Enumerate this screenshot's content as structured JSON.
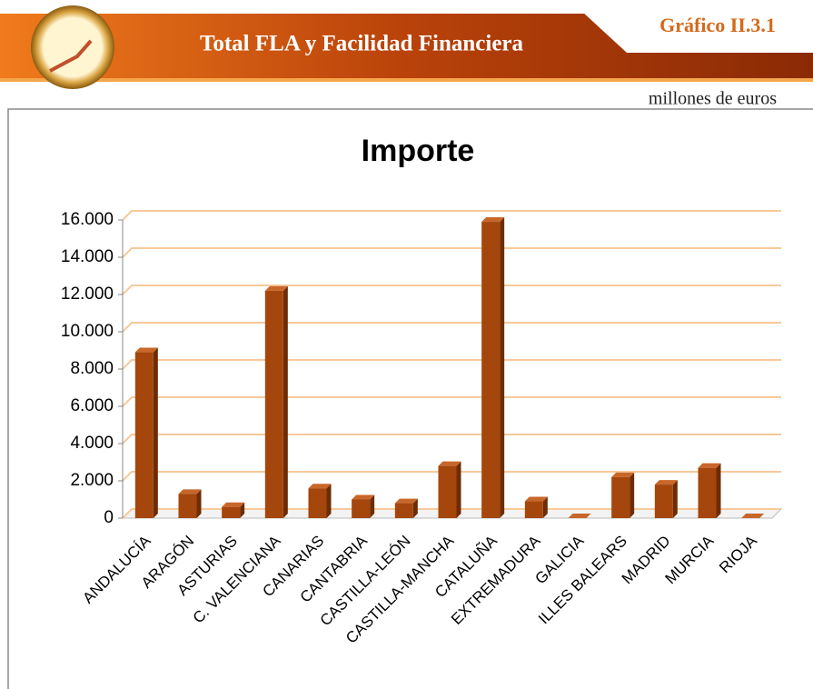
{
  "header": {
    "title": "Total FLA y Facilidad Financiera",
    "code": "Gráfico II.3.1",
    "units": "millones de euros"
  },
  "chart_data": {
    "type": "bar",
    "title": "Importe",
    "categories": [
      "ANDALUCÍA",
      "ARAGÓN",
      "ASTURIAS",
      "C. VALENCIANA",
      "CANARIAS",
      "CANTABRIA",
      "CASTILLA-LEÓN",
      "CASTILLA-MANCHA",
      "CATALUÑA",
      "EXTREMADURA",
      "GALICIA",
      "ILLES BALEARS",
      "MADRID",
      "MURCIA",
      "RIOJA"
    ],
    "values": [
      8900,
      1300,
      600,
      12200,
      1600,
      1000,
      800,
      2800,
      15900,
      900,
      0,
      2200,
      1800,
      2700,
      0
    ],
    "color": "#a5460c",
    "ylim": [
      0,
      16000
    ],
    "yticks": [
      0,
      {
        "value": 2000,
        "label": "2.000"
      },
      {
        "value": 4000,
        "label": "4.000"
      },
      {
        "value": 6000,
        "label": "6.000"
      },
      {
        "value": 8000,
        "label": "8.000"
      },
      {
        "value": 10000,
        "label": "10.000"
      },
      {
        "value": 12000,
        "label": "12.000"
      },
      {
        "value": 14000,
        "label": "14.000"
      },
      {
        "value": 16000,
        "label": "16.000"
      }
    ],
    "grid": true
  }
}
